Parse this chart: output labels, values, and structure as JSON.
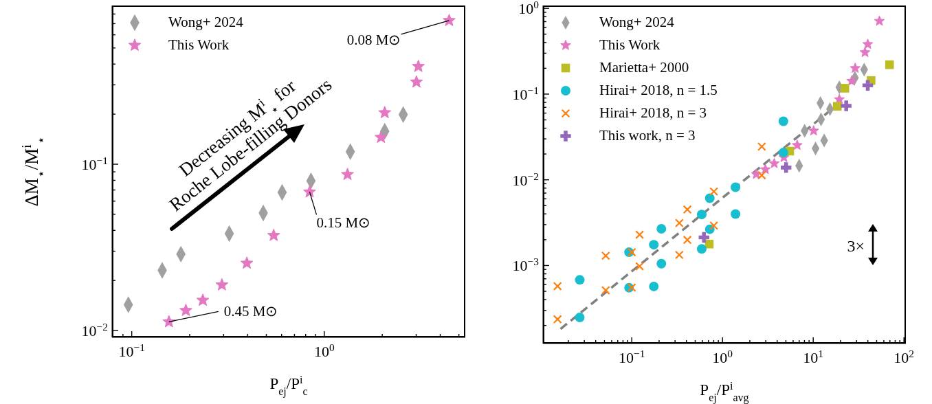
{
  "chart_data": [
    {
      "type": "scatter",
      "xlabel": "P$_{ej}$/P$^{i}$$_{c}$",
      "ylabel": "ΔM$_{⋆}$/M$^{i}$$_{⋆}$",
      "log": "xy",
      "legend": "top left",
      "xlim": [
        0.079,
        5.4
      ],
      "ylim": [
        0.0091,
        0.9
      ],
      "xticks": [
        {
          "value": 0.09,
          "label": null
        },
        {
          "value": 0.1,
          "label": "10$^{−1}$"
        },
        {
          "value": 0.2,
          "label": null
        },
        {
          "value": 0.3,
          "label": null
        },
        {
          "value": 0.4,
          "label": null
        },
        {
          "value": 0.5,
          "label": null
        },
        {
          "value": 0.6,
          "label": null
        },
        {
          "value": 0.7,
          "label": null
        },
        {
          "value": 0.8,
          "label": null
        },
        {
          "value": 0.9,
          "label": null
        },
        {
          "value": 1,
          "label": "10$^{0}$"
        },
        {
          "value": 2,
          "label": null
        },
        {
          "value": 3,
          "label": null
        },
        {
          "value": 4,
          "label": null
        },
        {
          "value": 5,
          "label": null
        }
      ],
      "yticks": [
        {
          "value": 0.01,
          "label": "10$^{−2}$"
        },
        {
          "value": 0.02,
          "label": null
        },
        {
          "value": 0.03,
          "label": null
        },
        {
          "value": 0.04,
          "label": null
        },
        {
          "value": 0.05,
          "label": null
        },
        {
          "value": 0.06,
          "label": null
        },
        {
          "value": 0.07,
          "label": null
        },
        {
          "value": 0.08,
          "label": null
        },
        {
          "value": 0.09,
          "label": null
        },
        {
          "value": 0.1,
          "label": "10$^{−1}$"
        },
        {
          "value": 0.2,
          "label": null
        },
        {
          "value": 0.3,
          "label": null
        },
        {
          "value": 0.4,
          "label": null
        },
        {
          "value": 0.5,
          "label": null
        },
        {
          "value": 0.6,
          "label": null
        },
        {
          "value": 0.7,
          "label": null
        },
        {
          "value": 0.8,
          "label": null
        }
      ],
      "series": [
        {
          "name": "Wong+ 2024",
          "marker": "diamond",
          "color": "#a0a0a0",
          "x": [
            0.096,
            0.144,
            0.18,
            0.321,
            0.482,
            0.604,
            0.853,
            1.365,
            2.06,
            2.57
          ],
          "values": [
            0.0143,
            0.023,
            0.0288,
            0.0383,
            0.0509,
            0.0677,
            0.0794,
            0.119,
            0.158,
            0.199
          ]
        },
        {
          "name": "This Work",
          "marker": "star",
          "color": "#e377c2",
          "x": [
            0.156,
            0.191,
            0.234,
            0.294,
            0.396,
            0.546,
            0.839,
            1.32,
            1.97,
            2.06,
            3.01,
            3.08,
            4.45
          ],
          "values": [
            0.01128,
            0.0132,
            0.0152,
            0.0188,
            0.0254,
            0.0373,
            0.0681,
            0.0867,
            0.145,
            0.204,
            0.312,
            0.387,
            0.731
          ]
        }
      ],
      "annotations": [
        "Decreasing M$^{i}$$_{⋆}$ for\nRoche Lobe-filling Donors",
        {
          "text": "0.08 M⊙",
          "x": 4.45,
          "y": 0.731
        },
        {
          "text": "0.15 M⊙",
          "x": 0.839,
          "y": 0.0681
        },
        {
          "text": "0.45 M⊙",
          "x": 0.156,
          "y": 0.01128
        }
      ]
    },
    {
      "type": "scatter",
      "xlabel": "P$_{ej}$/P$^{i}$$_{avg}$",
      "log": "xy",
      "legend": "top left",
      "xlim": [
        0.0105,
        105
      ],
      "ylim": [
        0.000123,
        1.08
      ],
      "xticks": [
        {
          "value": 0.02,
          "label": null
        },
        {
          "value": 0.03,
          "label": null
        },
        {
          "value": 0.04,
          "label": null
        },
        {
          "value": 0.05,
          "label": null
        },
        {
          "value": 0.06,
          "label": null
        },
        {
          "value": 0.07,
          "label": null
        },
        {
          "value": 0.08,
          "label": null
        },
        {
          "value": 0.09,
          "label": null
        },
        {
          "value": 0.1,
          "label": "10$^{−1}$"
        },
        {
          "value": 0.2,
          "label": null
        },
        {
          "value": 0.3,
          "label": null
        },
        {
          "value": 0.4,
          "label": null
        },
        {
          "value": 0.5,
          "label": null
        },
        {
          "value": 0.6,
          "label": null
        },
        {
          "value": 0.7,
          "label": null
        },
        {
          "value": 0.8,
          "label": null
        },
        {
          "value": 0.9,
          "label": null
        },
        {
          "value": 1,
          "label": "10$^{0}$"
        },
        {
          "value": 2,
          "label": null
        },
        {
          "value": 3,
          "label": null
        },
        {
          "value": 4,
          "label": null
        },
        {
          "value": 5,
          "label": null
        },
        {
          "value": 6,
          "label": null
        },
        {
          "value": 7,
          "label": null
        },
        {
          "value": 8,
          "label": null
        },
        {
          "value": 9,
          "label": null
        },
        {
          "value": 10,
          "label": "10$^{1}$"
        },
        {
          "value": 20,
          "label": null
        },
        {
          "value": 30,
          "label": null
        },
        {
          "value": 40,
          "label": null
        },
        {
          "value": 50,
          "label": null
        },
        {
          "value": 60,
          "label": null
        },
        {
          "value": 70,
          "label": null
        },
        {
          "value": 80,
          "label": null
        },
        {
          "value": 90,
          "label": null
        },
        {
          "value": 100,
          "label": "10$^{2}$"
        }
      ],
      "yticks": [
        {
          "value": 0.0002,
          "label": null
        },
        {
          "value": 0.0003,
          "label": null
        },
        {
          "value": 0.0004,
          "label": null
        },
        {
          "value": 0.0005,
          "label": null
        },
        {
          "value": 0.0006,
          "label": null
        },
        {
          "value": 0.0007,
          "label": null
        },
        {
          "value": 0.0008,
          "label": null
        },
        {
          "value": 0.0009,
          "label": null
        },
        {
          "value": 0.001,
          "label": "10$^{−3}$"
        },
        {
          "value": 0.002,
          "label": null
        },
        {
          "value": 0.003,
          "label": null
        },
        {
          "value": 0.004,
          "label": null
        },
        {
          "value": 0.005,
          "label": null
        },
        {
          "value": 0.006,
          "label": null
        },
        {
          "value": 0.007,
          "label": null
        },
        {
          "value": 0.008,
          "label": null
        },
        {
          "value": 0.009,
          "label": null
        },
        {
          "value": 0.01,
          "label": "10$^{−2}$"
        },
        {
          "value": 0.02,
          "label": null
        },
        {
          "value": 0.03,
          "label": null
        },
        {
          "value": 0.04,
          "label": null
        },
        {
          "value": 0.05,
          "label": null
        },
        {
          "value": 0.06,
          "label": null
        },
        {
          "value": 0.07,
          "label": null
        },
        {
          "value": 0.08,
          "label": null
        },
        {
          "value": 0.09,
          "label": null
        },
        {
          "value": 0.1,
          "label": "10$^{−1}$"
        },
        {
          "value": 0.2,
          "label": null
        },
        {
          "value": 0.3,
          "label": null
        },
        {
          "value": 0.4,
          "label": null
        },
        {
          "value": 0.5,
          "label": null
        },
        {
          "value": 0.6,
          "label": null
        },
        {
          "value": 0.7,
          "label": null
        },
        {
          "value": 0.8,
          "label": null
        },
        {
          "value": 0.9,
          "label": null
        },
        {
          "value": 1,
          "label": "10$^{0}$"
        }
      ],
      "series": [
        {
          "type": "line",
          "line_style": "dashed",
          "marker": "none",
          "color": "#808080",
          "x": [
            0.0164,
            16.8
          ],
          "values": [
            0.000182,
            0.0693
          ]
        },
        {
          "name": "Wong+ 2024",
          "marker": "diamond",
          "color": "#a0a0a0",
          "x": [
            7.0,
            10.6,
            13.2,
            8.04,
            12.2,
            12.0,
            15.3,
            19.4,
            28.8,
            36.4
          ],
          "values": [
            0.0146,
            0.0232,
            0.0288,
            0.0373,
            0.0507,
            0.0786,
            0.0668,
            0.12,
            0.155,
            0.193
          ]
        },
        {
          "name": "This Work",
          "marker": "star",
          "color": "#e377c2",
          "x": [
            2.36,
            2.97,
            3.72,
            4.75,
            6.65,
            10.1,
            17.2,
            19.4,
            26.5,
            29.0,
            37.2,
            39.9,
            53.6
          ],
          "values": [
            0.0116,
            0.0132,
            0.0155,
            0.0182,
            0.0253,
            0.0373,
            null,
            0.0865,
            0.142,
            0.2,
            0.306,
            0.381,
            0.71
          ]
        },
        {
          "name": "Marietta+ 2000",
          "marker": "square",
          "color": "#bcbd22",
          "x": [
            0.714,
            5.5,
            18.4,
            22.3,
            43.4,
            69.3
          ],
          "values": [
            0.00178,
            0.0216,
            0.072,
            0.117,
            0.144,
            0.22
          ]
        },
        {
          "name": "Hirai+ 2018, n = 1.5",
          "marker": "circle",
          "color": "#17becf",
          "x": [
            0.0267,
            0.0267,
            0.0933,
            0.0933,
            0.175,
            0.175,
            0.212,
            0.212,
            0.59,
            0.59,
            0.724,
            0.724,
            1.39,
            1.39,
            4.69,
            4.69
          ],
          "values": [
            0.000248,
            0.00068,
            0.00055,
            0.00143,
            0.00057,
            0.00175,
            0.00105,
            0.00268,
            0.00156,
            0.00394,
            0.00265,
            0.0061,
            0.00399,
            0.0082,
            0.0482,
            0.0208
          ]
        },
        {
          "name": "Hirai+ 2018, n = 3",
          "marker": "cross",
          "color": "#ff7f0e",
          "x": [
            0.0152,
            0.0152,
            0.0516,
            0.0516,
            0.1,
            0.1,
            0.122,
            0.122,
            0.334,
            0.334,
            0.41,
            0.41,
            0.803,
            0.803,
            2.71,
            2.71
          ],
          "values": [
            0.000236,
            0.000574,
            0.000514,
            0.0013,
            0.000553,
            0.00143,
            0.00098,
            0.00229,
            0.00133,
            0.00313,
            0.00199,
            0.0045,
            0.00292,
            0.0073,
            0.0113,
            0.0244
          ]
        },
        {
          "name": "This work, n = 3",
          "marker": "plus",
          "color": "#9467bd",
          "x": [
            0.625,
            5.02,
            23.1,
            39.9
          ],
          "values": [
            0.00213,
            0.0139,
            0.0729,
            0.1264
          ]
        }
      ],
      "annotations": [
        "3×"
      ]
    }
  ]
}
